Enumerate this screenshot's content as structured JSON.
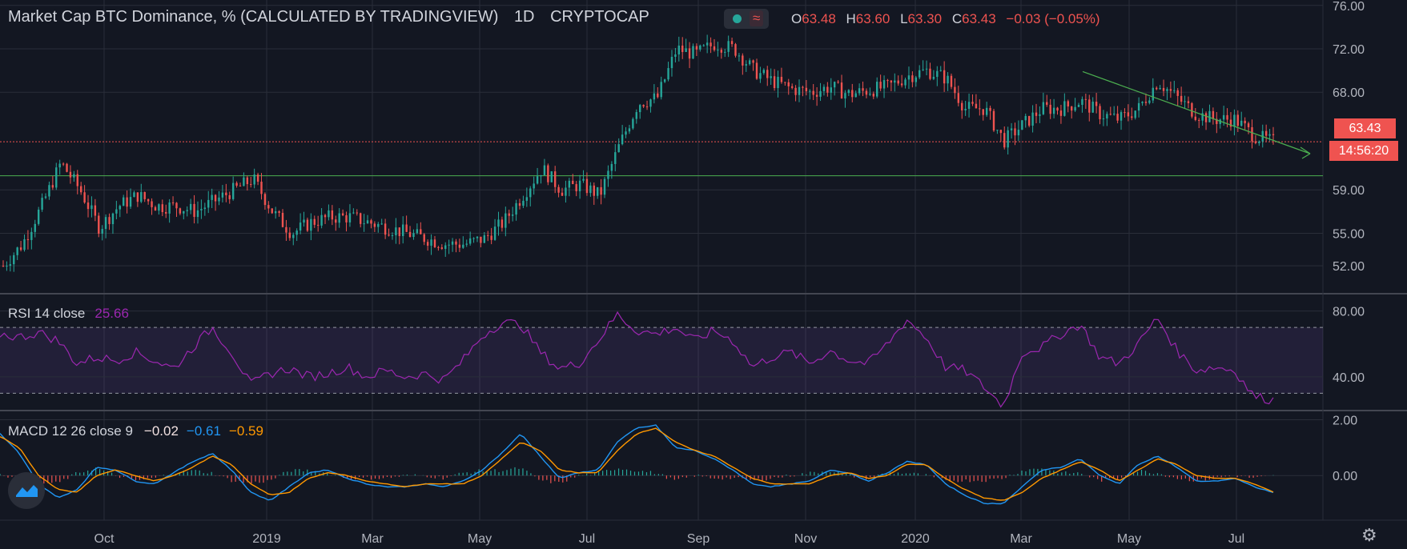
{
  "header": {
    "symbol_title": "Market Cap BTC Dominance, % (CALCULATED BY TRADINGVIEW)",
    "interval": "1D",
    "exchange": "CRYPTOCAP",
    "ohlc": {
      "o_label": "O",
      "o_value": "63.48",
      "h_label": "H",
      "h_value": "63.60",
      "l_label": "L",
      "l_value": "63.30",
      "c_label": "C",
      "c_value": "63.43",
      "change": "−0.03 (−0.05%)"
    },
    "status_icon": "live-dot-icon",
    "compare_icon": "wave-icon"
  },
  "price_tag": "63.43",
  "countdown_tag": "14:56:20",
  "rsi_label": {
    "name": "RSI 14 close",
    "value": "25.66"
  },
  "macd_label": {
    "name": "MACD 12 26 close 9",
    "hist": "−0.02",
    "macd": "−0.61",
    "signal": "−0.59"
  },
  "colors": {
    "background": "#131722",
    "grid": "#2a2e39",
    "up": "#26a69a",
    "down": "#ef5350",
    "rsi": "#9c27b0",
    "macd": "#2196f3",
    "signal": "#ff9800",
    "trend": "#4caf50"
  },
  "chart_data": [
    {
      "type": "candlestick",
      "title": "Market Cap BTC Dominance, % (CALCULATED BY TRADINGVIEW)",
      "x_ticks": [
        "Oct",
        "2019",
        "Mar",
        "May",
        "Jul",
        "Sep",
        "Nov",
        "2020",
        "Mar",
        "May",
        "Jul"
      ],
      "y_ticks": [
        "76.00",
        "72.00",
        "68.00",
        "63.43",
        "59.00",
        "55.00",
        "52.00"
      ],
      "ylim": [
        49.5,
        76.5
      ],
      "horizontal_lines": [
        63.43,
        60.3
      ],
      "trendline": {
        "from": {
          "x": "Apr 2020",
          "y": 69.9
        },
        "to": {
          "x": "Jul 2020",
          "y": 61.1
        }
      },
      "close_series": [
        52,
        54,
        57.5,
        61.5,
        59,
        55.5,
        57.5,
        58.5,
        57.5,
        57.5,
        57,
        58,
        59,
        60,
        57,
        55,
        56,
        56.5,
        56.5,
        56,
        55.5,
        55,
        54.5,
        54,
        54,
        54.5,
        56,
        58.5,
        61,
        59,
        59.5,
        58.5,
        63,
        67,
        67.5,
        72,
        71.5,
        72.5,
        72,
        70,
        69,
        68.3,
        68,
        68.5,
        67.8,
        68.2,
        68.5,
        69.5,
        70,
        69.3,
        66.5,
        66.5,
        63.5,
        65,
        66.5,
        66.5,
        67.2,
        66,
        65.5,
        66.5,
        69,
        67.5,
        66,
        65.5,
        65.5,
        64,
        63.43
      ]
    },
    {
      "type": "line",
      "title": "RSI 14 close",
      "y_ticks": [
        "80.00",
        "40.00"
      ],
      "ylim": [
        20,
        90
      ],
      "bands": [
        70,
        30
      ],
      "series": [
        {
          "name": "RSI 14 close",
          "values": [
            66,
            64,
            67,
            62,
            48,
            52,
            50,
            55,
            50,
            45,
            58,
            70,
            55,
            35,
            42,
            45,
            40,
            42,
            46,
            40,
            44,
            40,
            42,
            38,
            50,
            65,
            73,
            72,
            55,
            45,
            48,
            62,
            78,
            68,
            66,
            70,
            62,
            68,
            62,
            46,
            52,
            55,
            48,
            56,
            50,
            48,
            60,
            75,
            64,
            46,
            44,
            34,
            22,
            55,
            58,
            66,
            72,
            52,
            48,
            60,
            76,
            56,
            44,
            46,
            44,
            28,
            26
          ]
        }
      ]
    },
    {
      "type": "line",
      "title": "MACD 12 26 close 9",
      "y_ticks": [
        "2.00",
        "0.00"
      ],
      "ylim": [
        -1.6,
        2.3
      ],
      "series": [
        {
          "name": "MACD",
          "values": [
            1.5,
            0.8,
            -0.3,
            -0.8,
            -0.5,
            0.3,
            0.2,
            -0.2,
            -0.3,
            0.1,
            0.5,
            0.8,
            0.2,
            -0.6,
            -0.9,
            -0.4,
            0.1,
            0.2,
            -0.1,
            -0.3,
            -0.4,
            -0.4,
            -0.3,
            -0.4,
            -0.2,
            0.2,
            0.8,
            1.5,
            0.7,
            -0.1,
            0.1,
            0.2,
            1.2,
            1.7,
            1.8,
            1.0,
            0.9,
            0.6,
            0.2,
            -0.3,
            -0.4,
            -0.3,
            -0.2,
            0.2,
            0.1,
            -0.2,
            0.1,
            0.5,
            0.4,
            -0.3,
            -0.7,
            -1.0,
            -1.0,
            -0.4,
            0.2,
            0.3,
            0.6,
            0.0,
            -0.3,
            0.4,
            0.7,
            0.3,
            -0.2,
            -0.2,
            -0.1,
            -0.4,
            -0.61
          ]
        },
        {
          "name": "Signal",
          "values": [
            1.4,
            1.0,
            0.0,
            -0.5,
            -0.6,
            0.0,
            0.2,
            0.0,
            -0.2,
            0.0,
            0.3,
            0.7,
            0.4,
            -0.3,
            -0.7,
            -0.6,
            -0.1,
            0.1,
            0.0,
            -0.2,
            -0.3,
            -0.4,
            -0.3,
            -0.3,
            -0.3,
            0.0,
            0.6,
            1.2,
            0.9,
            0.2,
            0.1,
            0.1,
            0.9,
            1.5,
            1.7,
            1.2,
            0.9,
            0.7,
            0.3,
            -0.1,
            -0.3,
            -0.3,
            -0.3,
            0.0,
            0.1,
            -0.1,
            0.0,
            0.4,
            0.4,
            -0.1,
            -0.5,
            -0.8,
            -0.9,
            -0.6,
            -0.1,
            0.2,
            0.5,
            0.2,
            -0.2,
            0.2,
            0.6,
            0.4,
            0.0,
            -0.1,
            -0.1,
            -0.3,
            -0.59
          ]
        }
      ]
    }
  ]
}
